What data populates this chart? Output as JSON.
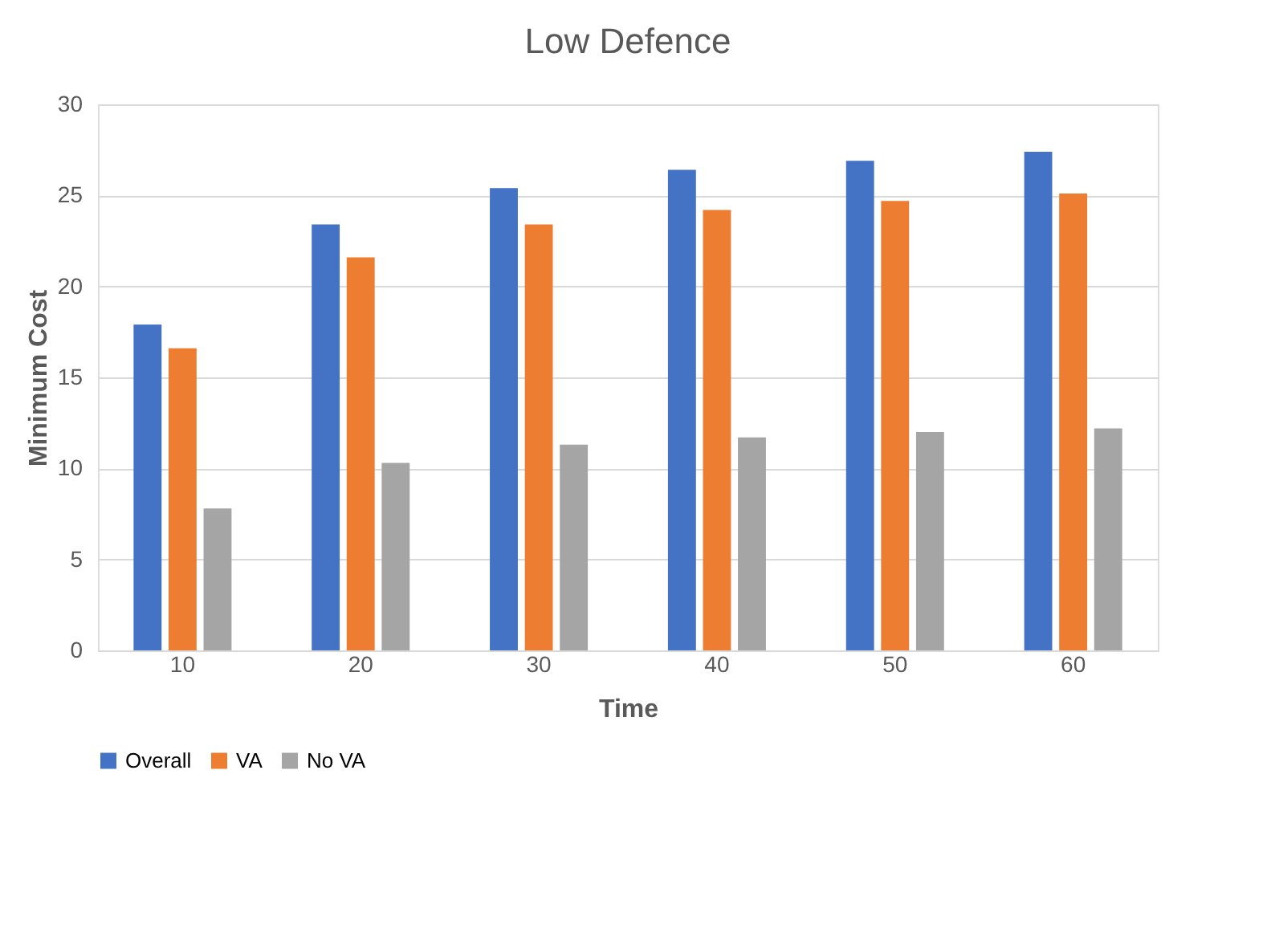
{
  "chart_data": {
    "type": "bar",
    "title": "Low Defence",
    "xlabel": "Time",
    "ylabel": "Minimum Cost",
    "categories": [
      "10",
      "20",
      "30",
      "40",
      "50",
      "60"
    ],
    "series": [
      {
        "name": "Overall",
        "color": "#4472c4",
        "values": [
          17.9,
          23.4,
          25.4,
          26.4,
          26.9,
          27.4
        ]
      },
      {
        "name": "VA",
        "color": "#ed7d31",
        "values": [
          16.6,
          21.6,
          23.4,
          24.2,
          24.7,
          25.1
        ]
      },
      {
        "name": "No VA",
        "color": "#a5a5a5",
        "values": [
          7.8,
          10.3,
          11.3,
          11.7,
          12.0,
          12.2
        ]
      }
    ],
    "ylim": [
      0,
      30
    ],
    "yticks": [
      0,
      5,
      10,
      15,
      20,
      25,
      30
    ],
    "grid": "y",
    "legend": "bottom"
  }
}
